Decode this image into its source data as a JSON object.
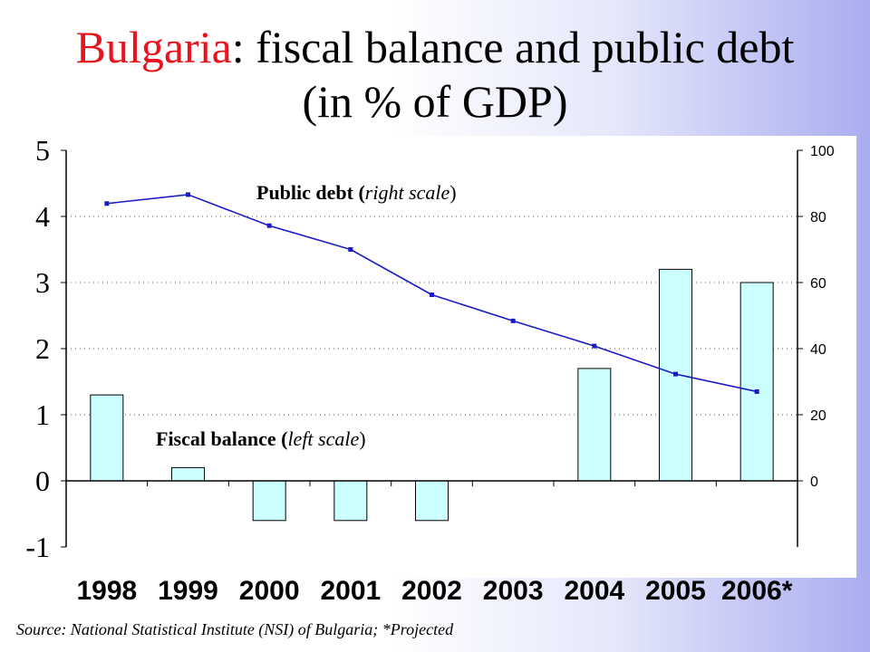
{
  "title": {
    "part1": "Bulgaria",
    "part2": ": fiscal balance and public debt",
    "line2": "(in % of GDP)"
  },
  "chart_data": {
    "type": "bar+line",
    "categories": [
      "1998",
      "1999",
      "2000",
      "2001",
      "2002",
      "2003",
      "2004",
      "2005",
      "2006*"
    ],
    "series": [
      {
        "name": "Fiscal balance (left scale)",
        "type": "bar",
        "axis": "left",
        "values": [
          1.3,
          0.2,
          -0.6,
          -0.6,
          -0.6,
          0.0,
          1.7,
          3.2,
          3.0
        ]
      },
      {
        "name": "Public debt (right scale)",
        "type": "line",
        "axis": "right",
        "values": [
          83.9,
          86.6,
          77.2,
          70.0,
          56.3,
          48.4,
          40.8,
          32.3,
          27.0
        ]
      }
    ],
    "left_axis": {
      "ylim": [
        -1,
        5
      ],
      "ticks": [
        "5",
        "4",
        "3",
        "2",
        "1",
        "0",
        "-1"
      ]
    },
    "right_axis": {
      "ylim": [
        -20,
        100
      ],
      "ticks": [
        "100",
        "80",
        "60",
        "40",
        "20",
        "0"
      ]
    },
    "annotations": {
      "debt": {
        "bold": "Public debt",
        "italic": "right scale"
      },
      "balance": {
        "bold": "Fiscal balance",
        "italic": "left scale"
      }
    },
    "bar_color": "#ccffff",
    "line_color": "#1a1ac8",
    "grid": "dotted"
  },
  "source": "Source: National Statistical Institute (NSI) of Bulgaria; *Projected"
}
